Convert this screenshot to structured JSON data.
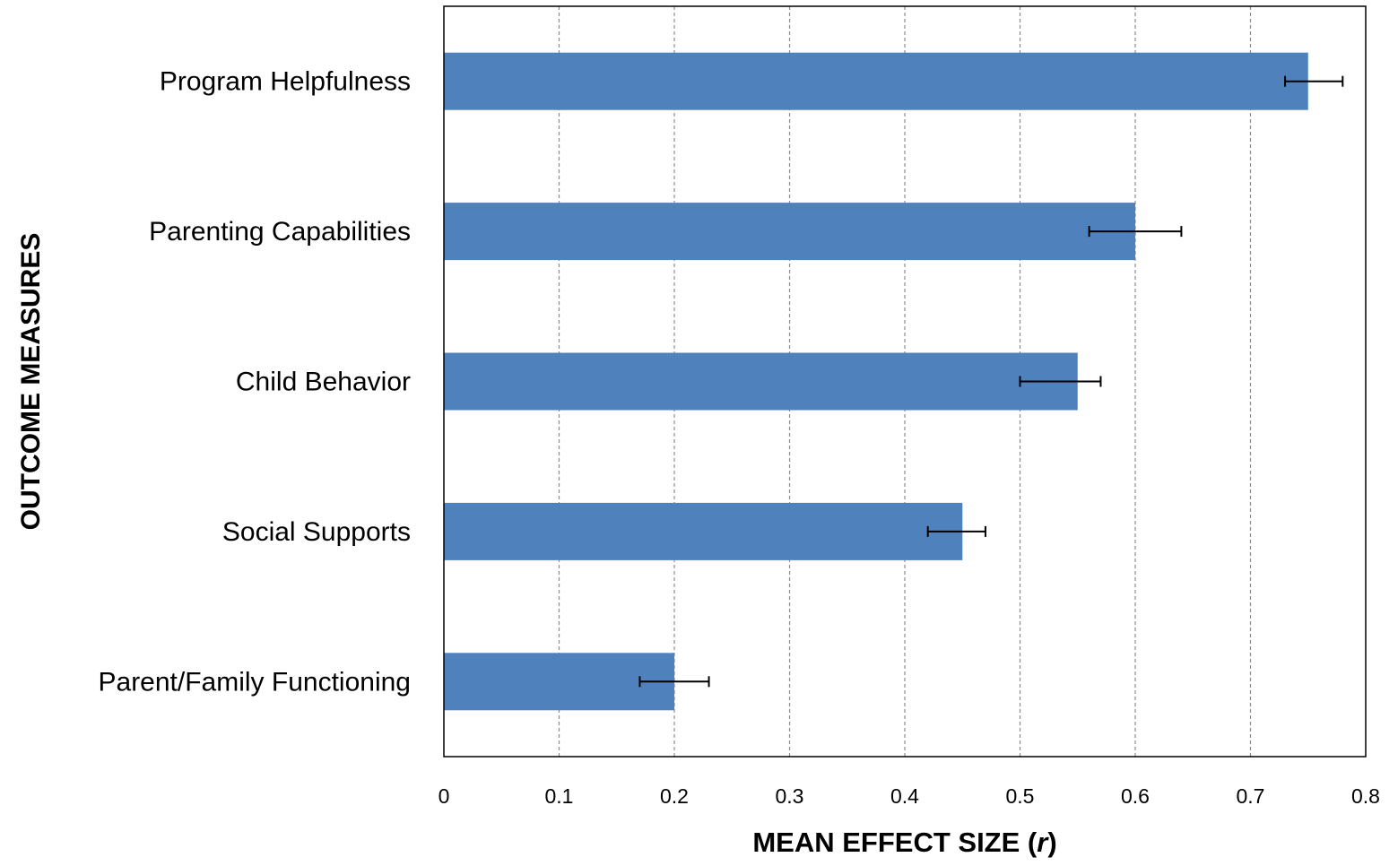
{
  "chart_data": {
    "type": "bar",
    "orientation": "horizontal",
    "categories": [
      "Program Helpfulness",
      "Parenting Capabilities",
      "Child Behavior",
      "Social Supports",
      "Parent/Family Functioning"
    ],
    "values": [
      0.75,
      0.6,
      0.55,
      0.45,
      0.2
    ],
    "error_low": [
      0.73,
      0.56,
      0.5,
      0.42,
      0.17
    ],
    "error_high": [
      0.78,
      0.64,
      0.57,
      0.47,
      0.23
    ],
    "xlabel": "MEAN EFFECT SIZE (",
    "xlabel_italic": "r",
    "xlabel_suffix": ")",
    "ylabel": "OUTCOME MEASURES",
    "xlim": [
      0,
      0.8
    ],
    "xticks": [
      0,
      0.1,
      0.2,
      0.3,
      0.4,
      0.5,
      0.6,
      0.7,
      0.8
    ],
    "xtick_labels": [
      "0",
      "0.1",
      "0.2",
      "0.3",
      "0.4",
      "0.5",
      "0.6",
      "0.7",
      "0.8"
    ],
    "grid": "vertical dashed",
    "bar_color": "#4F81BD",
    "grid_color": "#8C8C8C",
    "errorbar_color": "#000000"
  }
}
